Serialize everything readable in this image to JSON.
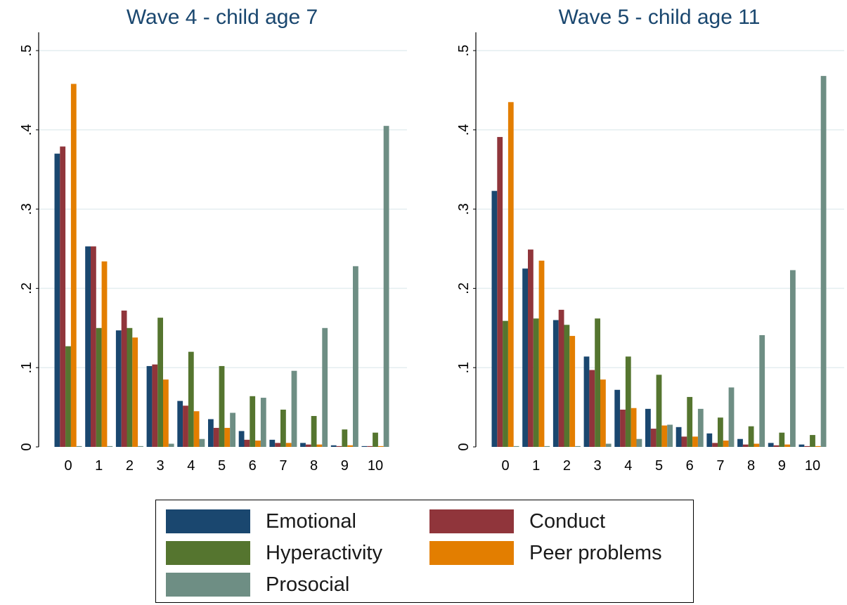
{
  "chart_data": [
    {
      "type": "bar",
      "title": "Wave 4 - child age 7",
      "xlabel": "",
      "ylabel": "",
      "categories": [
        "0",
        "1",
        "2",
        "3",
        "4",
        "5",
        "6",
        "7",
        "8",
        "9",
        "10"
      ],
      "ylim": [
        0,
        0.5
      ],
      "yticks": [
        0,
        0.1,
        0.2,
        0.3,
        0.4,
        0.5
      ],
      "ytick_labels": [
        "0",
        ".1",
        ".2",
        ".3",
        ".4",
        ".5"
      ],
      "grid": true,
      "series": [
        {
          "name": "Emotional",
          "values": [
            0.37,
            0.253,
            0.147,
            0.102,
            0.058,
            0.035,
            0.02,
            0.009,
            0.005,
            0.002,
            0.001
          ]
        },
        {
          "name": "Conduct",
          "values": [
            0.379,
            0.253,
            0.172,
            0.104,
            0.052,
            0.024,
            0.009,
            0.005,
            0.003,
            0.001,
            0.001
          ]
        },
        {
          "name": "Hyperactivity",
          "values": [
            0.127,
            0.15,
            0.15,
            0.163,
            0.12,
            0.102,
            0.064,
            0.047,
            0.039,
            0.022,
            0.018
          ]
        },
        {
          "name": "Peer problems",
          "values": [
            0.458,
            0.234,
            0.138,
            0.085,
            0.045,
            0.024,
            0.008,
            0.005,
            0.003,
            0.002,
            0.001
          ]
        },
        {
          "name": "Prosocial",
          "values": [
            0.001,
            0.001,
            0.001,
            0.004,
            0.01,
            0.043,
            0.062,
            0.096,
            0.15,
            0.228,
            0.405
          ]
        }
      ]
    },
    {
      "type": "bar",
      "title": "Wave 5 - child age 11",
      "xlabel": "",
      "ylabel": "",
      "categories": [
        "0",
        "1",
        "2",
        "3",
        "4",
        "5",
        "6",
        "7",
        "8",
        "9",
        "10"
      ],
      "ylim": [
        0,
        0.5
      ],
      "yticks": [
        0,
        0.1,
        0.2,
        0.3,
        0.4,
        0.5
      ],
      "ytick_labels": [
        "0",
        ".1",
        ".2",
        ".3",
        ".4",
        ".5"
      ],
      "grid": true,
      "series": [
        {
          "name": "Emotional",
          "values": [
            0.323,
            0.225,
            0.16,
            0.114,
            0.072,
            0.048,
            0.025,
            0.017,
            0.01,
            0.005,
            0.003
          ]
        },
        {
          "name": "Conduct",
          "values": [
            0.391,
            0.249,
            0.173,
            0.097,
            0.047,
            0.023,
            0.013,
            0.005,
            0.003,
            0.002,
            0.001
          ]
        },
        {
          "name": "Hyperactivity",
          "values": [
            0.159,
            0.162,
            0.154,
            0.162,
            0.114,
            0.091,
            0.063,
            0.037,
            0.026,
            0.018,
            0.015
          ]
        },
        {
          "name": "Peer problems",
          "values": [
            0.435,
            0.235,
            0.14,
            0.085,
            0.049,
            0.027,
            0.013,
            0.008,
            0.004,
            0.003,
            0.001
          ]
        },
        {
          "name": "Prosocial",
          "values": [
            0.001,
            0.001,
            0.001,
            0.004,
            0.01,
            0.028,
            0.048,
            0.075,
            0.141,
            0.223,
            0.468
          ]
        }
      ]
    }
  ],
  "legend": {
    "placement": "bottom-center",
    "items": [
      {
        "label": "Emotional",
        "color": "#1a476f"
      },
      {
        "label": "Conduct",
        "color": "#90353b"
      },
      {
        "label": "Hyperactivity",
        "color": "#55752f"
      },
      {
        "label": "Peer problems",
        "color": "#e37e00"
      },
      {
        "label": "Prosocial",
        "color": "#6e8e84"
      }
    ]
  },
  "colors": {
    "Emotional": "#1a476f",
    "Conduct": "#90353b",
    "Hyperactivity": "#55752f",
    "Peer problems": "#e37e00",
    "Prosocial": "#6e8e84",
    "grid": "#e4eef0",
    "title": "#1a476f"
  }
}
